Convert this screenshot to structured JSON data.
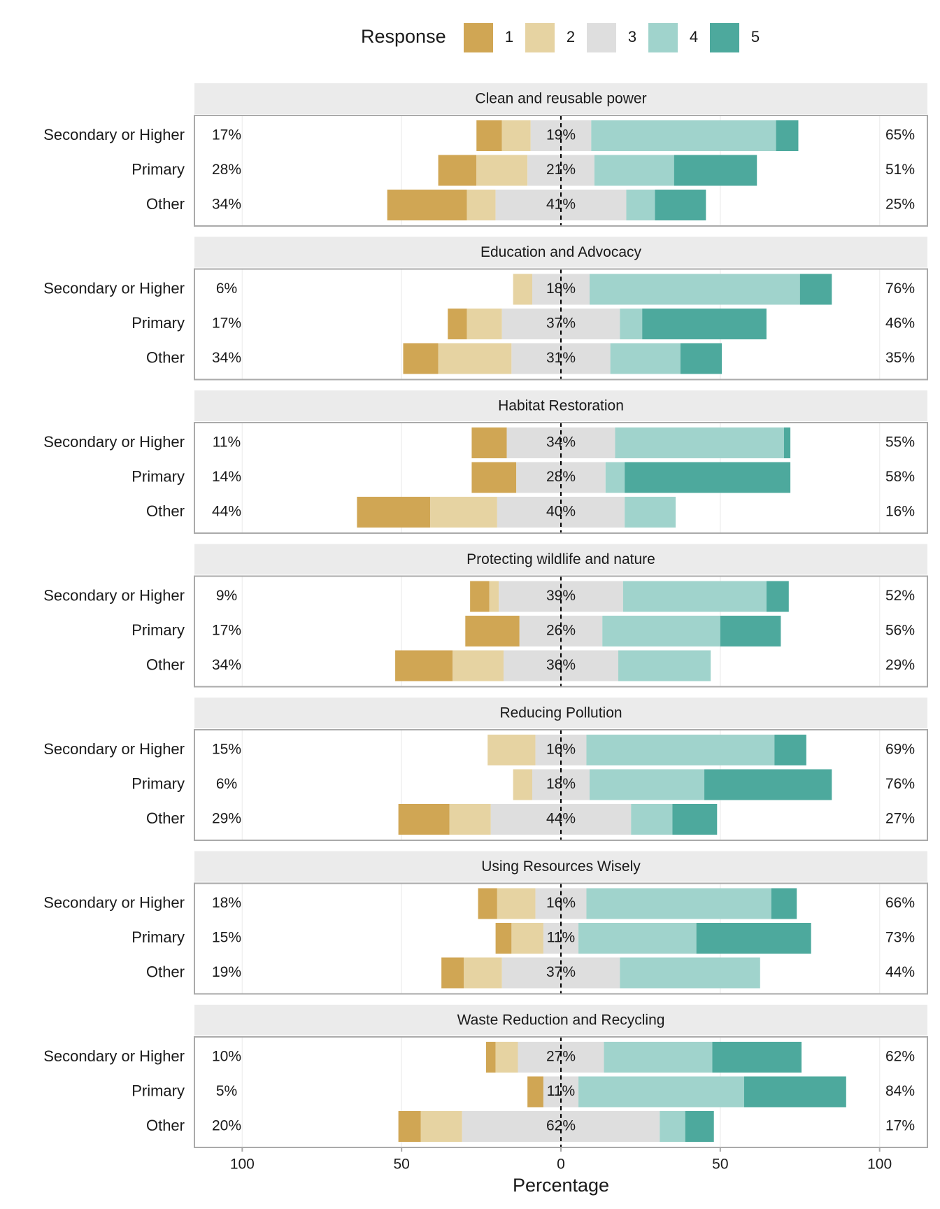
{
  "chart_data": {
    "type": "likert",
    "legend_title": "Response",
    "series": [
      {
        "name": "1",
        "color": "#D0A654"
      },
      {
        "name": "2",
        "color": "#E6D3A2"
      },
      {
        "name": "3",
        "color": "#DEDEDE"
      },
      {
        "name": "4",
        "color": "#A0D3CC"
      },
      {
        "name": "5",
        "color": "#4DA99D"
      }
    ],
    "xlabel": "Percentage",
    "xlim": [
      -115,
      115
    ],
    "xticks": [
      {
        "value": -100,
        "label": "100"
      },
      {
        "value": -50,
        "label": "50"
      },
      0,
      50,
      100
    ],
    "facets": [
      {
        "title": "Clean and reusable power",
        "categories": [
          "Secondary or Higher",
          "Primary",
          "Other"
        ],
        "values": [
          [
            8,
            9,
            19,
            58,
            7
          ],
          [
            12,
            16,
            21,
            25,
            26
          ],
          [
            25,
            9,
            41,
            9,
            16
          ]
        ],
        "labels": [
          [
            "17%",
            "19%",
            "65%"
          ],
          [
            "28%",
            "21%",
            "51%"
          ],
          [
            "34%",
            "41%",
            "25%"
          ]
        ]
      },
      {
        "title": "Education and Advocacy",
        "categories": [
          "Secondary or Higher",
          "Primary",
          "Other"
        ],
        "values": [
          [
            0,
            6,
            18,
            66,
            10
          ],
          [
            6,
            11,
            37,
            7,
            39
          ],
          [
            11,
            23,
            31,
            22,
            13
          ]
        ],
        "labels": [
          [
            "6%",
            "18%",
            "76%"
          ],
          [
            "17%",
            "37%",
            "46%"
          ],
          [
            "34%",
            "31%",
            "35%"
          ]
        ]
      },
      {
        "title": "Habitat Restoration",
        "categories": [
          "Secondary or Higher",
          "Primary",
          "Other"
        ],
        "values": [
          [
            11,
            0,
            34,
            53,
            2
          ],
          [
            14,
            0,
            28,
            6,
            52
          ],
          [
            23,
            21,
            40,
            16,
            0
          ]
        ],
        "labels": [
          [
            "11%",
            "34%",
            "55%"
          ],
          [
            "14%",
            "28%",
            "58%"
          ],
          [
            "44%",
            "40%",
            "16%"
          ]
        ]
      },
      {
        "title": "Protecting wildlife and nature",
        "categories": [
          "Secondary or Higher",
          "Primary",
          "Other"
        ],
        "values": [
          [
            6,
            3,
            39,
            45,
            7
          ],
          [
            17,
            0,
            26,
            37,
            19
          ],
          [
            18,
            16,
            36,
            29,
            0
          ]
        ],
        "labels": [
          [
            "9%",
            "39%",
            "52%"
          ],
          [
            "17%",
            "26%",
            "56%"
          ],
          [
            "34%",
            "36%",
            "29%"
          ]
        ]
      },
      {
        "title": "Reducing Pollution",
        "categories": [
          "Secondary or Higher",
          "Primary",
          "Other"
        ],
        "values": [
          [
            0,
            15,
            16,
            59,
            10
          ],
          [
            0,
            6,
            18,
            36,
            40
          ],
          [
            16,
            13,
            44,
            13,
            14
          ]
        ],
        "labels": [
          [
            "15%",
            "16%",
            "69%"
          ],
          [
            "6%",
            "18%",
            "76%"
          ],
          [
            "29%",
            "44%",
            "27%"
          ]
        ]
      },
      {
        "title": "Using Resources Wisely",
        "categories": [
          "Secondary or Higher",
          "Primary",
          "Other"
        ],
        "values": [
          [
            6,
            12,
            16,
            58,
            8
          ],
          [
            5,
            10,
            11,
            37,
            36
          ],
          [
            7,
            12,
            37,
            44,
            0
          ]
        ],
        "labels": [
          [
            "18%",
            "16%",
            "66%"
          ],
          [
            "15%",
            "11%",
            "73%"
          ],
          [
            "19%",
            "37%",
            "44%"
          ]
        ]
      },
      {
        "title": "Waste Reduction and Recycling",
        "categories": [
          "Secondary or Higher",
          "Primary",
          "Other"
        ],
        "values": [
          [
            3,
            7,
            27,
            34,
            28
          ],
          [
            5,
            0,
            11,
            52,
            32
          ],
          [
            7,
            13,
            62,
            8,
            9
          ]
        ],
        "labels": [
          [
            "10%",
            "27%",
            "62%"
          ],
          [
            "5%",
            "11%",
            "84%"
          ],
          [
            "20%",
            "62%",
            "17%"
          ]
        ]
      }
    ]
  }
}
